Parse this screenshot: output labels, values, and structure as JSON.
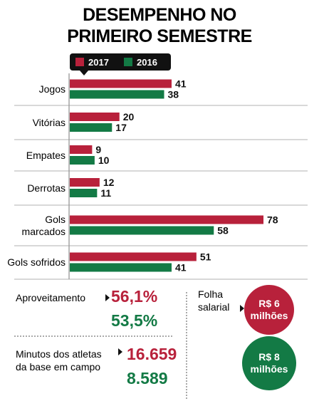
{
  "chart_data": {
    "type": "bar",
    "orientation": "horizontal",
    "title": "DESEMPENHO NO PRIMEIRO SEMESTRE",
    "categories": [
      "Jogos",
      "Vitórias",
      "Empates",
      "Derrotas",
      "Gols marcados",
      "Gols sofridos"
    ],
    "series": [
      {
        "name": "2017",
        "color": "#b8213b",
        "values": [
          41,
          20,
          9,
          12,
          78,
          51
        ]
      },
      {
        "name": "2016",
        "color": "#137a45",
        "values": [
          38,
          17,
          10,
          11,
          58,
          41
        ]
      }
    ]
  },
  "stats": {
    "aproveitamento": {
      "label": "Aproveitamento",
      "values": [
        "56,1%",
        "53,5%"
      ]
    },
    "minutos": {
      "label": "Minutos dos atletas da base em campo",
      "values": [
        "16.659",
        "8.589"
      ]
    },
    "folha": {
      "label": "Folha salarial",
      "values": [
        "R$ 6 milhões",
        "R$ 8 milhões"
      ]
    }
  }
}
